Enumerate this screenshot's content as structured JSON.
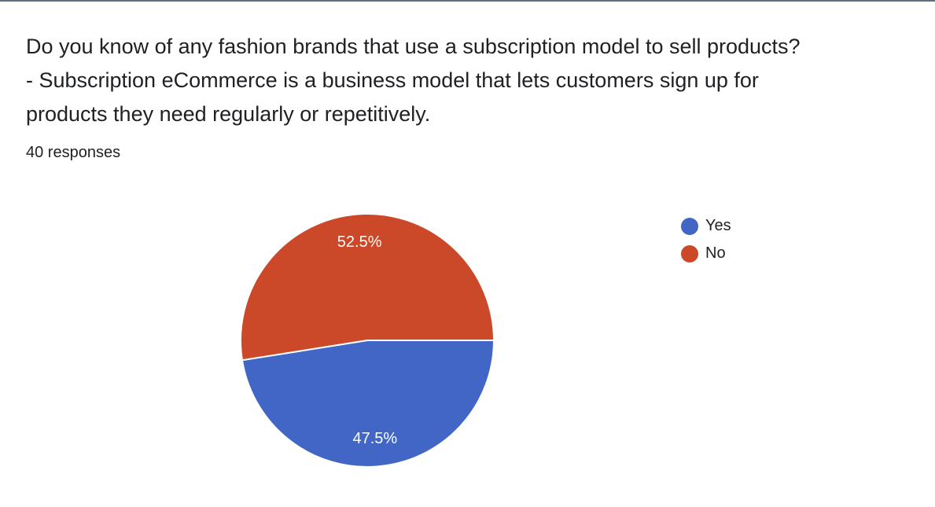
{
  "question": {
    "lines": [
      "Do you know of any fashion brands that use a subscription model to sell products?",
      "- Subscription eCommerce is a business model that lets customers sign up for",
      "products they need regularly or repetitively."
    ]
  },
  "response_count": "40 responses",
  "chart_data": {
    "type": "pie",
    "categories": [
      "Yes",
      "No"
    ],
    "values": [
      47.5,
      52.5
    ],
    "labels": [
      "47.5%",
      "52.5%"
    ],
    "colors": [
      "#4166c5",
      "#cb4828"
    ],
    "legend_position": "right"
  }
}
